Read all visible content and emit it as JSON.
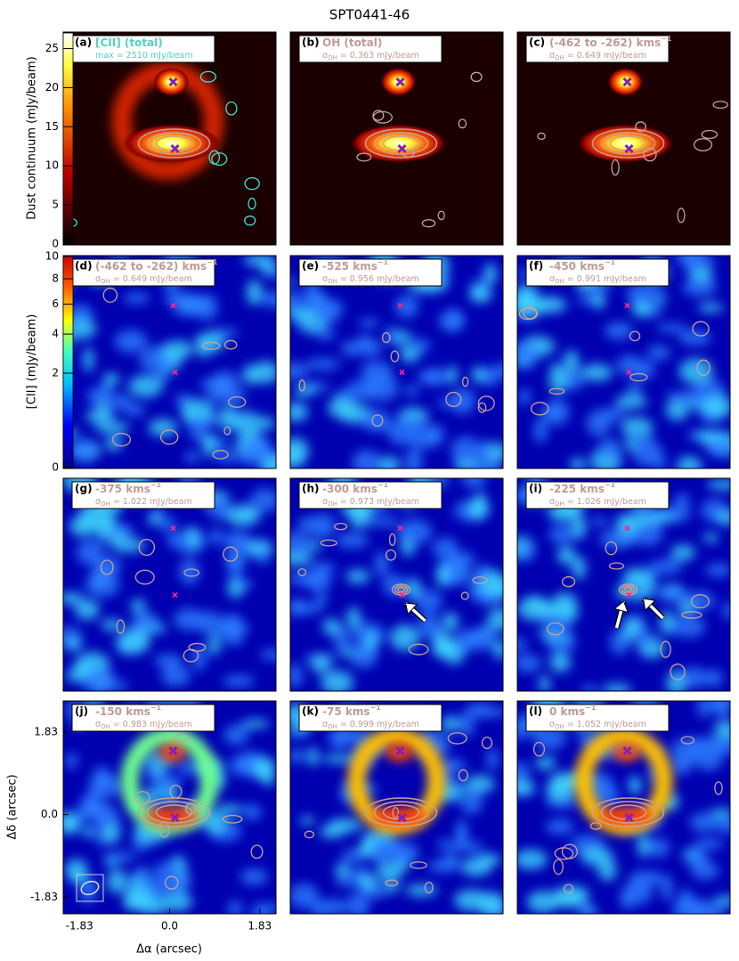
{
  "chart_data": {
    "type": "image-grid",
    "title": "SPT0441-46",
    "colorbar_top": {
      "label": "Dust continuum (mJy/beam)",
      "ylim": [
        0,
        27
      ],
      "yticks": [
        0,
        5,
        10,
        15,
        20,
        25
      ]
    },
    "colorbar_mid": {
      "label": "[CII] (mJy/beam)",
      "scale": "sqrt",
      "ylim": [
        0,
        10
      ],
      "yticks": [
        0,
        2,
        4,
        6,
        8,
        10
      ]
    },
    "xlabel": "Δα (arcsec)",
    "ylabel": "Δδ (arcsec)",
    "xlim": [
      -2.16,
      2.16
    ],
    "xticks": [
      -1.83,
      {
        "value": 0,
        "label": "0.0"
      },
      1.83
    ],
    "ylim": [
      -2.2,
      2.52
    ],
    "yticks": [
      -1.83,
      {
        "value": 0,
        "label": "0.0"
      },
      1.83
    ],
    "panels": [
      {
        "label": "(a)",
        "title": "[CII] (total)",
        "title_color": "#4fd1c5",
        "note": "max = 2510 mJy/beam"
      },
      {
        "label": "(b)",
        "title": "OH (total)",
        "title_color": "#c09a94",
        "note_sym": "σ",
        "note_sub": "OH",
        "note": "= 0.363 mJy/beam"
      },
      {
        "label": "(c)",
        "title": "(-462 to -262) kms",
        "title_sup": "−1",
        "title_color": "#c09a94",
        "note_sym": "σ",
        "note_sub": "OH",
        "note": "= 0.649 mJy/beam"
      },
      {
        "label": "(d)",
        "title": "(-462 to -262) kms",
        "title_sup": "−1",
        "title_color": "#c09a94",
        "note_sym": "σ",
        "note_sub": "OH",
        "note": "= 0.649 mJy/beam"
      },
      {
        "label": "(e)",
        "title": "-525 kms",
        "title_sup": "−1",
        "title_color": "#c09a94",
        "note_sym": "σ",
        "note_sub": "OH",
        "note": "= 0.956 mJy/beam"
      },
      {
        "label": "(f)",
        "title": "-450 kms",
        "title_sup": "−1",
        "title_color": "#c09a94",
        "note_sym": "σ",
        "note_sub": "OH",
        "note": "= 0.991 mJy/beam"
      },
      {
        "label": "(g)",
        "title": "-375 kms",
        "title_sup": "−1",
        "title_color": "#c09a94",
        "note_sym": "σ",
        "note_sub": "OH",
        "note": "= 1.022 mJy/beam"
      },
      {
        "label": "(h)",
        "title": "-300 kms",
        "title_sup": "−1",
        "title_color": "#c09a94",
        "note_sym": "σ",
        "note_sub": "OH",
        "note": "= 0.973 mJy/beam"
      },
      {
        "label": "(i)",
        "title": "-225 kms",
        "title_sup": "−1",
        "title_color": "#c09a94",
        "note_sym": "σ",
        "note_sub": "OH",
        "note": "= 1.026 mJy/beam"
      },
      {
        "label": "(j)",
        "title": "-150 kms",
        "title_sup": "−1",
        "title_color": "#c09a94",
        "note_sym": "σ",
        "note_sub": "OH",
        "note": "= 0.983 mJy/beam"
      },
      {
        "label": "(k)",
        "title": "-75 kms",
        "title_sup": "−1",
        "title_color": "#c09a94",
        "note_sym": "σ",
        "note_sub": "OH",
        "note": "= 0.999 mJy/beam"
      },
      {
        "label": "(l)",
        "title": "0 kms",
        "title_sup": "−1",
        "title_color": "#c09a94",
        "note_sym": "σ",
        "note_sub": "OH",
        "note": "= 1.052 mJy/beam"
      }
    ]
  }
}
